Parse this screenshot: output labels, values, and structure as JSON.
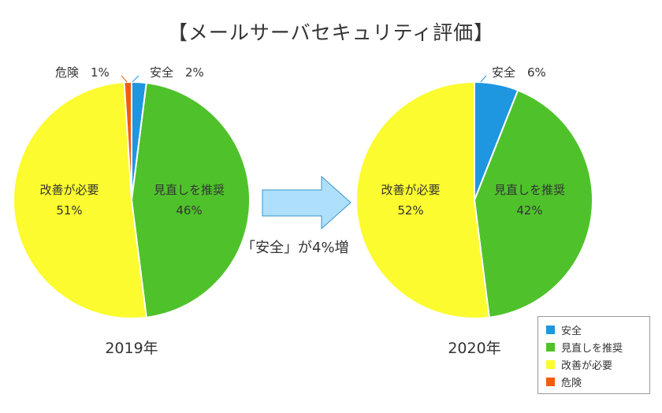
{
  "title": "【メールサーバセキュリティ評価】",
  "arrow_note": "「安全」が4%増",
  "legend": [
    {
      "label": "安全",
      "color": "#1f96e0"
    },
    {
      "label": "見直しを推奨",
      "color": "#4fc22b"
    },
    {
      "label": "改善が必要",
      "color": "#fbfb2f"
    },
    {
      "label": "危険",
      "color": "#f25c0d"
    }
  ],
  "chart_data": [
    {
      "type": "pie",
      "xlabel": "2019年",
      "slices": [
        {
          "label": "安全",
          "value": 2,
          "text": "2%",
          "color": "#1f96e0"
        },
        {
          "label": "見直しを推奨",
          "value": 46,
          "text": "46%",
          "color": "#4fc22b"
        },
        {
          "label": "改善が必要",
          "value": 51,
          "text": "51%",
          "color": "#fbfb2f"
        },
        {
          "label": "危険",
          "value": 1,
          "text": "1%",
          "color": "#f25c0d"
        }
      ]
    },
    {
      "type": "pie",
      "xlabel": "2020年",
      "slices": [
        {
          "label": "安全",
          "value": 6,
          "text": "6%",
          "color": "#1f96e0"
        },
        {
          "label": "見直しを推奨",
          "value": 42,
          "text": "42%",
          "color": "#4fc22b"
        },
        {
          "label": "改善が必要",
          "value": 52,
          "text": "52%",
          "color": "#fbfb2f"
        },
        {
          "label": "危険",
          "value": 0,
          "text": "",
          "color": "#f25c0d"
        }
      ]
    }
  ]
}
